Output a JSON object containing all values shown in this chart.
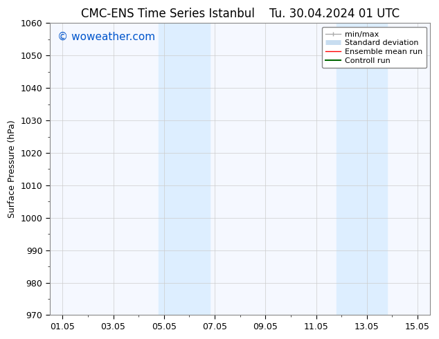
{
  "title_left": "CMC-ENS Time Series Istanbul",
  "title_right": "Tu. 30.04.2024 01 UTC",
  "ylabel": "Surface Pressure (hPa)",
  "ylim": [
    970,
    1060
  ],
  "yticks": [
    970,
    980,
    990,
    1000,
    1010,
    1020,
    1030,
    1040,
    1050,
    1060
  ],
  "xtick_labels": [
    "01.05",
    "03.05",
    "05.05",
    "07.05",
    "09.05",
    "11.05",
    "13.05",
    "15.05"
  ],
  "xtick_positions": [
    0,
    2,
    4,
    6,
    8,
    10,
    12,
    14
  ],
  "xlim": [
    -0.5,
    14.5
  ],
  "shaded_bands": [
    {
      "x_start": 3.8,
      "x_end": 5.8
    },
    {
      "x_start": 10.8,
      "x_end": 12.8
    }
  ],
  "shaded_color": "#ddeeff",
  "watermark_text": "© woweather.com",
  "watermark_color": "#0055cc",
  "background_color": "#ffffff",
  "axes_bg_color": "#f5f8ff",
  "legend_items": [
    {
      "label": "min/max",
      "color": "#aaaaaa",
      "lw": 1.0
    },
    {
      "label": "Standard deviation",
      "color": "#c8ddf0",
      "lw": 5
    },
    {
      "label": "Ensemble mean run",
      "color": "#ff0000",
      "lw": 1.0
    },
    {
      "label": "Controll run",
      "color": "#006600",
      "lw": 1.5
    }
  ],
  "grid_color": "#cccccc",
  "font_size_title": 12,
  "font_size_axis": 9,
  "font_size_legend": 8,
  "font_size_watermark": 11
}
